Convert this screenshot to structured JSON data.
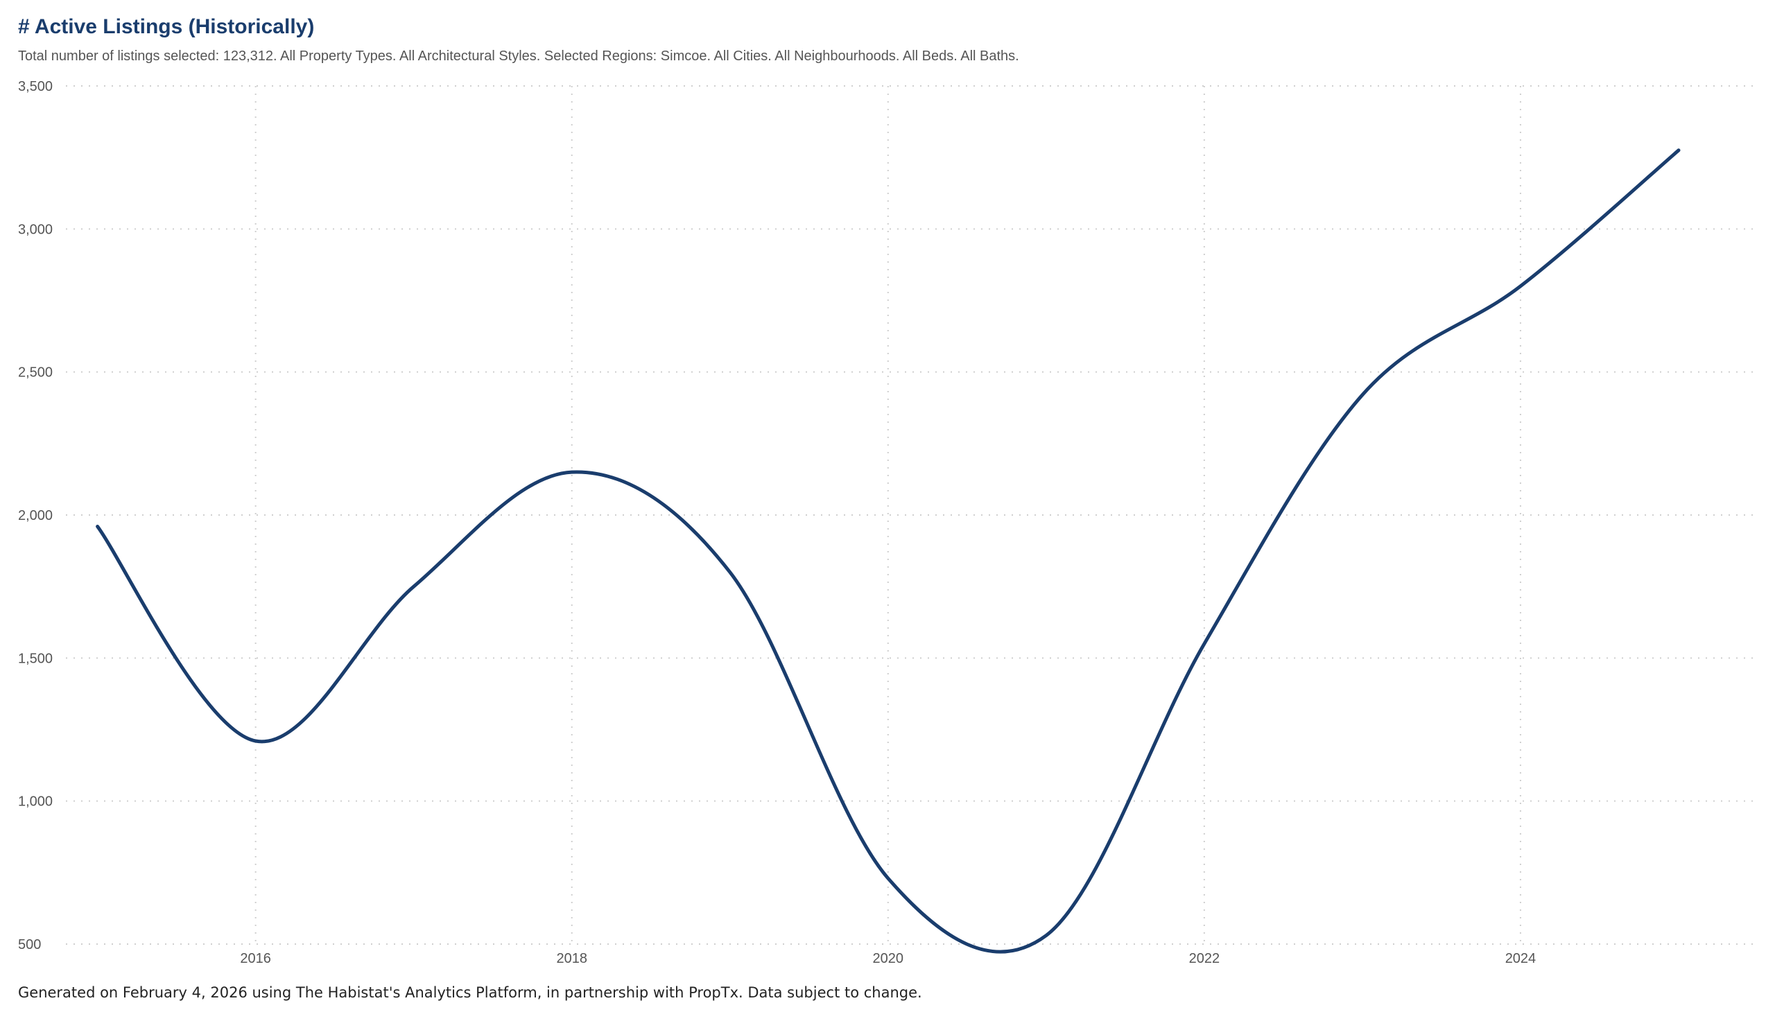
{
  "header": {
    "title": "# Active Listings (Historically)",
    "subtitle": "Total number of listings selected: 123,312. All Property Types. All Architectural Styles. Selected Regions: Simcoe. All Cities. All Neighbourhoods. All Beds. All Baths."
  },
  "footer": {
    "note": "Generated on February 4, 2026 using The Habistat's Analytics Platform, in partnership with PropTx. Data subject to change."
  },
  "colors": {
    "line": "#1a3d6d",
    "grid": "#cfcfcf",
    "title": "#1a3d6d"
  },
  "chart_data": {
    "type": "line",
    "title": "# Active Listings (Historically)",
    "xlabel": "",
    "ylabel": "",
    "xlim": [
      2014.8,
      2025.5
    ],
    "ylim": [
      500,
      3500
    ],
    "x_ticks": [
      2016,
      2018,
      2020,
      2022,
      2024
    ],
    "x_tick_labels": [
      "2016",
      "2018",
      "2020",
      "2022",
      "2024"
    ],
    "y_ticks": [
      500,
      1000,
      1500,
      2000,
      2500,
      3000,
      3500
    ],
    "y_tick_labels": [
      "500",
      "1,000",
      "1,500",
      "2,000",
      "2,500",
      "3,000",
      "3,500"
    ],
    "grid": true,
    "grid_style": "dotted",
    "series": [
      {
        "x": [
          2015,
          2016,
          2017,
          2018,
          2019,
          2020,
          2021,
          2022,
          2023,
          2024,
          2025
        ],
        "values": [
          1960,
          1210,
          1750,
          2150,
          1800,
          730,
          530,
          1550,
          2420,
          2800,
          3275
        ]
      }
    ]
  }
}
